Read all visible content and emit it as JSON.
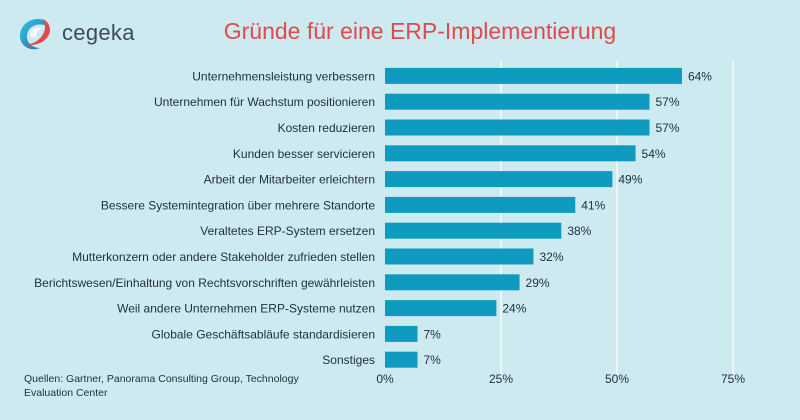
{
  "brand": {
    "name": "cegeka",
    "logo_icon": "cegeka-swirl-logo"
  },
  "colors": {
    "background": "#cdeaf0",
    "bar": "#0e9bbf",
    "title": "#e4484f",
    "text": "#1f2d3d",
    "grid": "#ffffff"
  },
  "source_note": "Quellen: Gartner, Panorama Consulting Group, Technology Evaluation Center",
  "chart_data": {
    "type": "bar",
    "orientation": "horizontal",
    "title": "Gründe für eine ERP-Implementierung",
    "categories": [
      "Unternehmensleistung verbessern",
      "Unternehmen für Wachstum positionieren",
      "Kosten reduzieren",
      "Kunden besser servicieren",
      "Arbeit der Mitarbeiter erleichtern",
      "Bessere Systemintegration über mehrere Standorte",
      "Veraltetes ERP-System ersetzen",
      "Mutterkonzern oder andere Stakeholder zufrieden stellen",
      "Berichtswesen/Einhaltung von Rechtsvorschriften gewährleisten",
      "Weil andere Unternehmen ERP-Systeme nutzen",
      "Globale Geschäftsabläufe standardisieren",
      "Sonstiges"
    ],
    "values": [
      64,
      57,
      57,
      54,
      49,
      41,
      38,
      32,
      29,
      24,
      7,
      7
    ],
    "value_labels": [
      "64%",
      "57%",
      "57%",
      "54%",
      "49%",
      "41%",
      "38%",
      "32%",
      "29%",
      "24%",
      "7%",
      "7%"
    ],
    "xlim": [
      0,
      75
    ],
    "xticks": [
      0,
      25,
      50,
      75
    ],
    "xtick_labels": [
      "0%",
      "25%",
      "50%",
      "75%"
    ],
    "grid": true,
    "legend": "none"
  }
}
